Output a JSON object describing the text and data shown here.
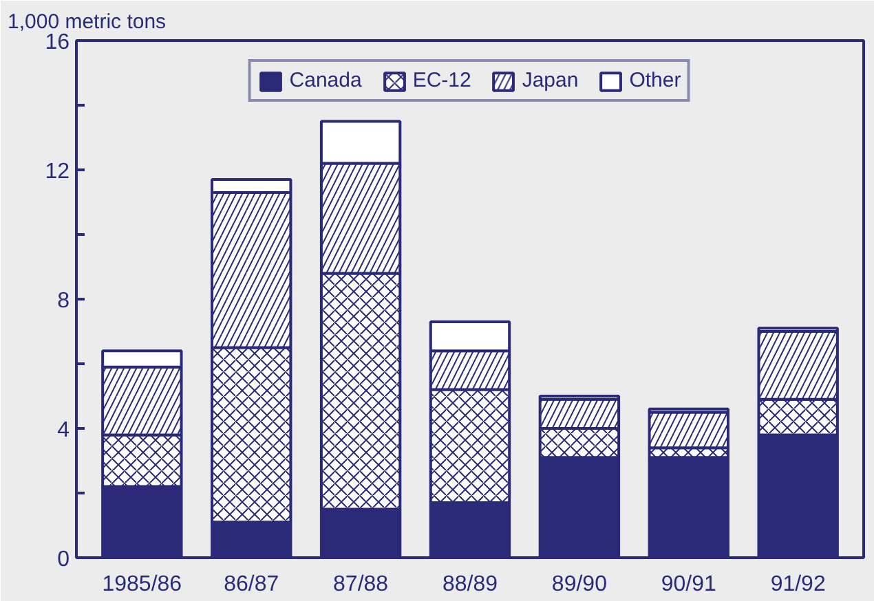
{
  "chart_data": {
    "type": "bar",
    "stacked": true,
    "ylabel": "1,000 metric tons",
    "categories": [
      "1985/86",
      "86/87",
      "87/88",
      "88/89",
      "89/90",
      "90/91",
      "91/92"
    ],
    "series": [
      {
        "name": "Canada",
        "color": "#2a2a78",
        "values": [
          2.2,
          1.1,
          1.5,
          1.7,
          3.1,
          3.1,
          3.8
        ]
      },
      {
        "name": "EC-12",
        "color": "#ffffff",
        "values": [
          1.6,
          5.4,
          7.3,
          3.5,
          0.9,
          0.3,
          1.1
        ]
      },
      {
        "name": "Japan",
        "color": "#ffffff",
        "values": [
          2.1,
          4.8,
          3.4,
          1.2,
          0.9,
          1.1,
          2.1
        ]
      },
      {
        "name": "Other",
        "color": "#ffffff",
        "values": [
          0.5,
          0.4,
          1.3,
          0.9,
          0.1,
          0.1,
          0.1
        ]
      }
    ],
    "ylim": [
      0,
      16
    ],
    "yticks": [
      0,
      {
        "value": 2,
        "label": null
      },
      4,
      {
        "value": 6,
        "label": null
      },
      8,
      {
        "value": 10,
        "label": null
      },
      12,
      {
        "value": 14,
        "label": null
      },
      16
    ],
    "grid": false,
    "legend": "top"
  }
}
